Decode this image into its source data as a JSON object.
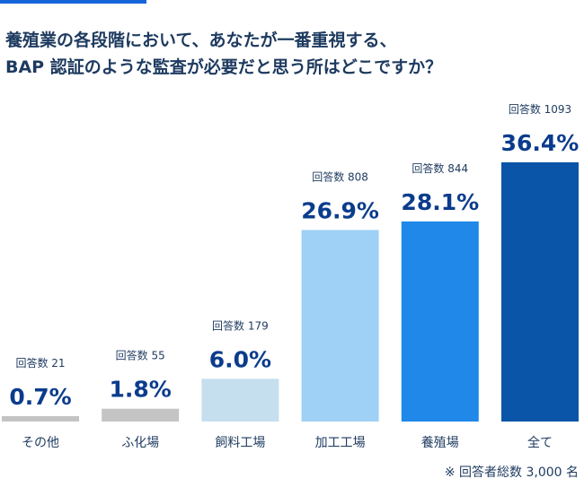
{
  "title": {
    "line1": "養殖業の各段階において、あなたが一番重視する、",
    "line2": "BAP 認証のような監査が必要だと思う所はどこですか？"
  },
  "footnote": "※ 回答者総数 3,000 名",
  "chart_data": {
    "type": "bar",
    "categories": [
      "その他",
      "ふ化場",
      "飼料工場",
      "加工工場",
      "養殖場",
      "全て"
    ],
    "values": [
      0.7,
      1.8,
      6.0,
      26.9,
      28.1,
      36.4
    ],
    "value_labels": [
      "0.7%",
      "1.8%",
      "6.0%",
      "26.9%",
      "28.1%",
      "36.4%"
    ],
    "count_labels": [
      "回答数 21",
      "回答数 55",
      "回答数 179",
      "回答数 808",
      "回答数 844",
      "回答数 1093"
    ],
    "ylim": [
      0,
      36.4
    ],
    "colors": [
      "#c4c4c4",
      "#c4c4c4",
      "#c5dfee",
      "#9fd0f5",
      "#1f88e8",
      "#0a55a8"
    ],
    "text_color": "#0b3c8c",
    "grid": false,
    "legend": "none"
  }
}
